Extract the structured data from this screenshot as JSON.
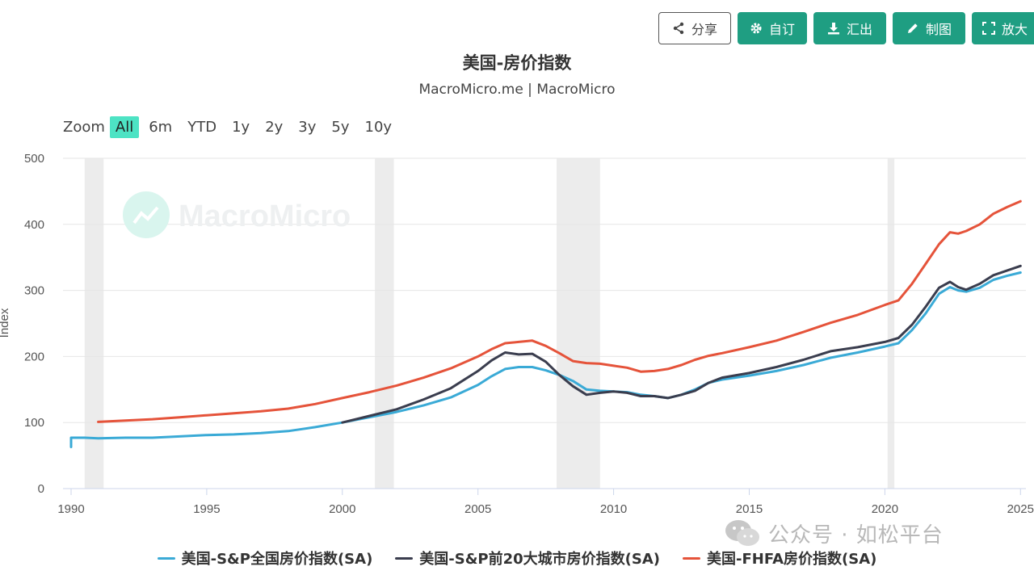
{
  "toolbar": {
    "share": "分享",
    "customize": "自订",
    "export": "汇出",
    "draw": "制图",
    "enlarge": "放大"
  },
  "colors": {
    "accent": "#1f9e82",
    "zoom_active": "#4de3c4",
    "recession": "#ececec"
  },
  "zoom": {
    "label": "Zoom",
    "options": [
      "All",
      "6m",
      "YTD",
      "1y",
      "2y",
      "3y",
      "5y",
      "10y"
    ],
    "active": "All"
  },
  "watermark": {
    "brand": "MacroMicro",
    "wechat": "公众号 · 如松平台"
  },
  "chart_data": {
    "type": "line",
    "title": "美国-房价指数",
    "subtitle": "MacroMicro.me | MacroMicro",
    "ylabel": "Index",
    "xlabel": "",
    "xlim": [
      1990,
      2025.2
    ],
    "ylim": [
      0,
      500
    ],
    "yticks": [
      0,
      100,
      200,
      300,
      400,
      500
    ],
    "xticks": [
      1990,
      1995,
      2000,
      2005,
      2010,
      2015,
      2020,
      2025
    ],
    "grid": true,
    "legend_position": "bottom-center",
    "recessions": [
      [
        1990.5,
        1991.2
      ],
      [
        2001.2,
        2001.9
      ],
      [
        2007.9,
        2009.5
      ],
      [
        2020.1,
        2020.35
      ]
    ],
    "series": [
      {
        "name": "美国-S&P全国房价指数(SA)",
        "color": "#3aaad6",
        "x": [
          1987,
          1990,
          1990.5,
          1991,
          1992,
          1993,
          1994,
          1995,
          1996,
          1997,
          1998,
          1999,
          2000,
          2001,
          2002,
          2003,
          2004,
          2005,
          2005.5,
          2006,
          2006.5,
          2007,
          2007.5,
          2008,
          2008.5,
          2009,
          2009.5,
          2010,
          2010.5,
          2011,
          2011.5,
          2012,
          2012.5,
          2013,
          2013.5,
          2014,
          2015,
          2016,
          2017,
          2018,
          2019,
          2020,
          2020.5,
          2021,
          2021.5,
          2022,
          2022.4,
          2022.7,
          2023,
          2023.5,
          2024,
          2024.5,
          2025
        ],
        "y": [
          63,
          77,
          77,
          76,
          77,
          77,
          79,
          81,
          82,
          84,
          87,
          93,
          100,
          108,
          116,
          126,
          138,
          157,
          170,
          181,
          184,
          184,
          179,
          172,
          163,
          150,
          148,
          147,
          146,
          142,
          140,
          137,
          142,
          150,
          160,
          165,
          171,
          178,
          187,
          198,
          206,
          215,
          220,
          240,
          265,
          295,
          305,
          300,
          298,
          304,
          316,
          322,
          327
        ]
      },
      {
        "name": "美国-S&P前20大城市房价指数(SA)",
        "color": "#3a3d4e",
        "x": [
          2000,
          2001,
          2002,
          2003,
          2004,
          2005,
          2005.5,
          2006,
          2006.5,
          2007,
          2007.5,
          2008,
          2008.5,
          2009,
          2009.5,
          2010,
          2010.5,
          2011,
          2011.5,
          2012,
          2012.5,
          2013,
          2013.5,
          2014,
          2015,
          2016,
          2017,
          2018,
          2019,
          2020,
          2020.5,
          2021,
          2021.5,
          2022,
          2022.4,
          2022.7,
          2023,
          2023.5,
          2024,
          2024.5,
          2025
        ],
        "y": [
          100,
          110,
          120,
          135,
          152,
          178,
          194,
          206,
          203,
          204,
          192,
          172,
          155,
          142,
          145,
          147,
          145,
          140,
          140,
          137,
          142,
          148,
          160,
          168,
          175,
          184,
          195,
          208,
          214,
          222,
          228,
          248,
          275,
          304,
          313,
          305,
          301,
          310,
          323,
          330,
          337
        ]
      },
      {
        "name": "美国-FHFA房价指数(SA)",
        "color": "#e5533a",
        "x": [
          1991,
          1992,
          1993,
          1994,
          1995,
          1996,
          1997,
          1998,
          1999,
          2000,
          2001,
          2002,
          2003,
          2004,
          2005,
          2005.5,
          2006,
          2006.5,
          2007,
          2007.5,
          2008,
          2008.5,
          2009,
          2009.5,
          2010,
          2010.5,
          2011,
          2011.5,
          2012,
          2012.5,
          2013,
          2013.5,
          2014,
          2015,
          2016,
          2017,
          2018,
          2019,
          2020,
          2020.5,
          2021,
          2021.5,
          2022,
          2022.4,
          2022.7,
          2023,
          2023.5,
          2024,
          2024.5,
          2025
        ],
        "y": [
          101,
          103,
          105,
          108,
          111,
          114,
          117,
          121,
          128,
          137,
          146,
          156,
          168,
          182,
          200,
          211,
          220,
          222,
          224,
          216,
          205,
          193,
          190,
          189,
          186,
          183,
          177,
          178,
          181,
          187,
          195,
          201,
          205,
          214,
          224,
          237,
          251,
          263,
          278,
          285,
          310,
          340,
          370,
          388,
          386,
          390,
          400,
          416,
          426,
          435
        ]
      }
    ]
  }
}
